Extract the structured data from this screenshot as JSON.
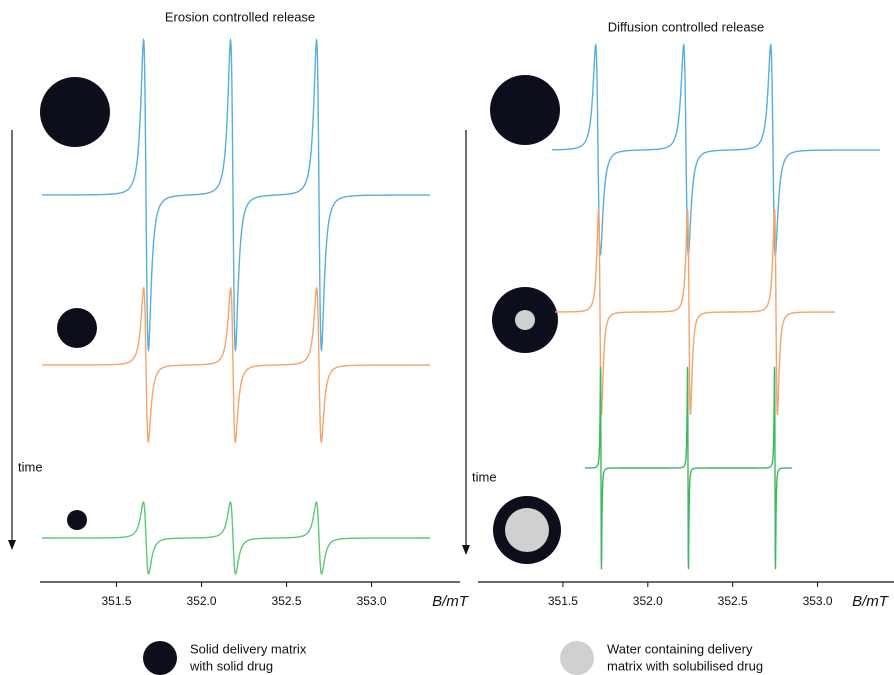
{
  "chart_data": [
    {
      "type": "spectra",
      "title": "Erosion controlled release",
      "time_label": "time",
      "xlabel": "B/mT",
      "xlim": [
        351.05,
        353.52
      ],
      "xticks": [
        {
          "value": 351.5,
          "label": "351.5"
        },
        {
          "value": 352,
          "label": "352.0"
        },
        {
          "value": 352.5,
          "label": "352.5"
        },
        {
          "value": 353,
          "label": "353.0"
        }
      ]
    },
    {
      "type": "spectra",
      "title": "Diffusion controlled release",
      "time_label": "time",
      "xlabel": "B/mT",
      "xlim": [
        351.0,
        353.45
      ],
      "xticks": [
        {
          "value": 351.5,
          "label": "351.5"
        },
        {
          "value": 352,
          "label": "352.0"
        },
        {
          "value": 352.5,
          "label": "352.5"
        },
        {
          "value": 353,
          "label": "353.0"
        }
      ]
    }
  ],
  "legend": [
    {
      "lines": [
        "Solid delivery matrix",
        "with solid drug"
      ]
    },
    {
      "lines": [
        "Water containing delivery",
        "matrix with solubilised drug"
      ]
    }
  ]
}
